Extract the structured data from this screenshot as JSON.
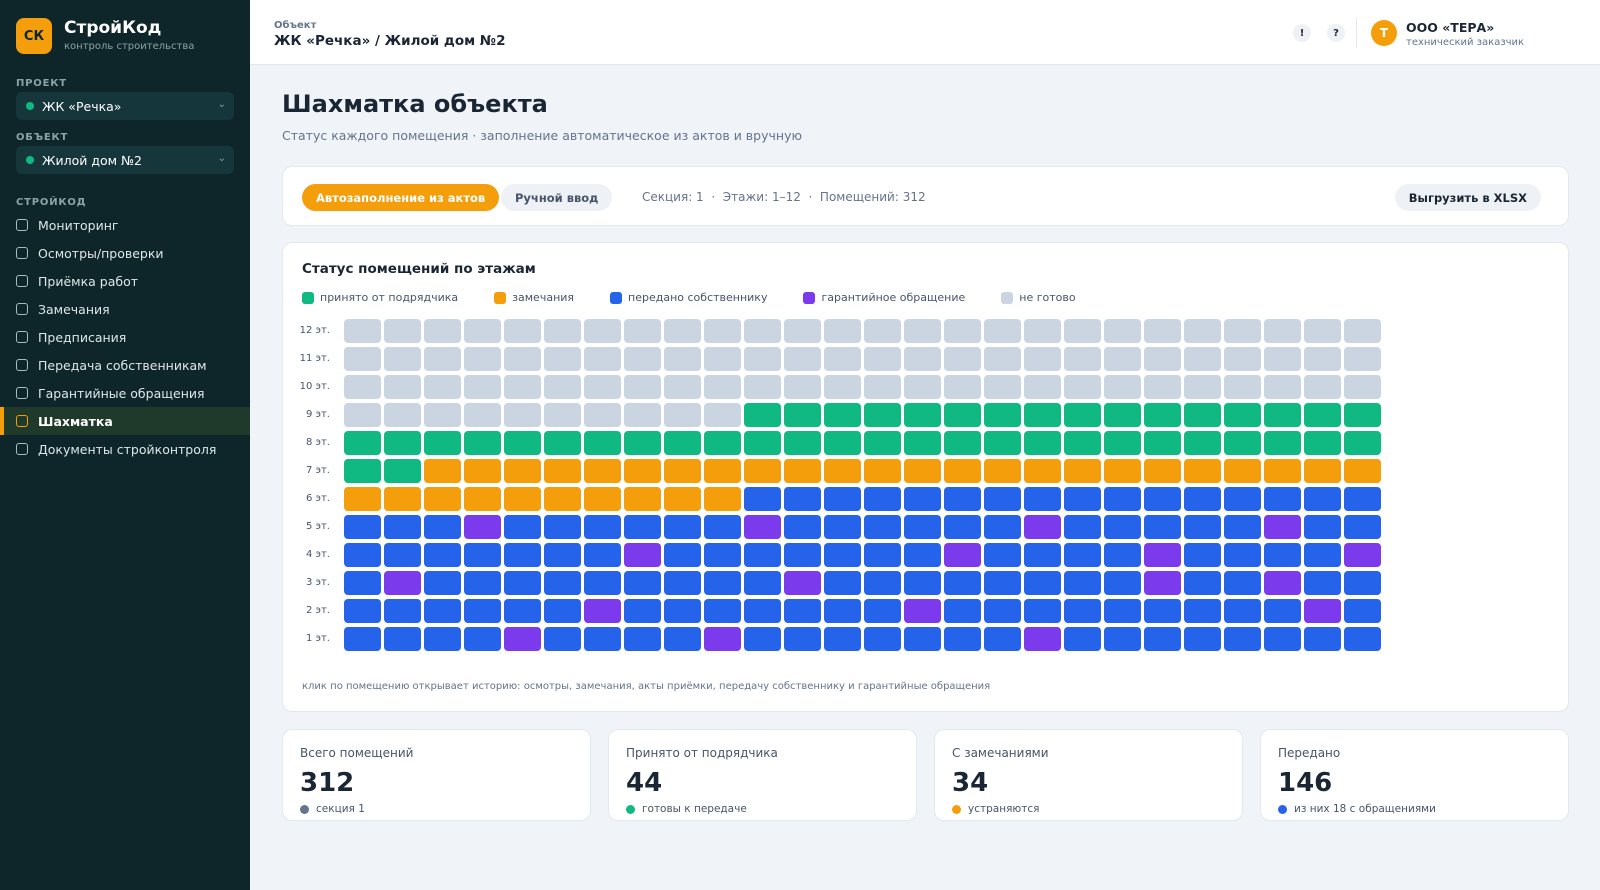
{
  "brand": {
    "logo": "СК",
    "name": "СтройКод",
    "subtitle": "контроль строительства"
  },
  "sidebar": {
    "project_label": "ПРОЕКТ",
    "project_value": "ЖК «Речка»",
    "object_label": "ОБЪЕКТ",
    "object_value": "Жилой дом №2",
    "section_label": "СТРОЙКОД",
    "items": [
      {
        "label": "Мониторинг",
        "active": false
      },
      {
        "label": "Осмотры/проверки",
        "active": false
      },
      {
        "label": "Приёмка работ",
        "active": false
      },
      {
        "label": "Замечания",
        "active": false
      },
      {
        "label": "Предписания",
        "active": false
      },
      {
        "label": "Передача собственникам",
        "active": false
      },
      {
        "label": "Гарантийные обращения",
        "active": false
      },
      {
        "label": "Шахматка",
        "active": true
      },
      {
        "label": "Документы стройконтроля",
        "active": false
      }
    ]
  },
  "header": {
    "object_label": "Объект",
    "object_title": "ЖК «Речка» / Жилой дом №2",
    "icon1": "!",
    "icon2": "?",
    "avatar": "Т",
    "user_name": "ООО «ТЕРА»",
    "user_role": "технический заказчик"
  },
  "page": {
    "title": "Шахматка объекта",
    "subtitle": "Статус каждого помещения · заполнение автоматическое из актов и вручную"
  },
  "toolbar": {
    "auto_button": "Автозаполнение из актов",
    "manual_button": "Ручной ввод",
    "info": "Секция: 1  ·  Этажи: 1–12  ·  Помещений: 312",
    "export_button": "Выгрузить в XLSX"
  },
  "grid": {
    "title": "Статус помещений по этажам",
    "legend": [
      {
        "key": "accepted",
        "label": "принято от подрядчика",
        "color": "#10b981"
      },
      {
        "key": "remarks",
        "label": "замечания",
        "color": "#f59e0b"
      },
      {
        "key": "transferred",
        "label": "передано собственнику",
        "color": "#2563eb"
      },
      {
        "key": "warranty",
        "label": "гарантийное обращение",
        "color": "#7c3aed"
      },
      {
        "key": "notready",
        "label": "не готово",
        "color": "#cbd5e1"
      }
    ],
    "floors": [
      {
        "label": "12 эт.",
        "rooms": "NNNNNNNNNNNNNNNNNNNNNNNNNN"
      },
      {
        "label": "11 эт.",
        "rooms": "NNNNNNNNNNNNNNNNNNNNNNNNNN"
      },
      {
        "label": "10 эт.",
        "rooms": "NNNNNNNNNNNNNNNNNNNNNNNNNN"
      },
      {
        "label": "9 эт.",
        "rooms": "NNNNNNNNNNGGGGGGGGGGGGGGGG"
      },
      {
        "label": "8 эт.",
        "rooms": "GGGGGGGGGGGGGGGGGGGGGGGGGG"
      },
      {
        "label": "7 эт.",
        "rooms": "GGOOOOOOOOOOOOOOOOOOOOOOOO"
      },
      {
        "label": "6 эт.",
        "rooms": "OOOOOOOOOOBBBBBBBBBBBBBBBB"
      },
      {
        "label": "5 эт.",
        "rooms": "BBBPBBBBBBPBBBBBBPBBBBBPBB"
      },
      {
        "label": "4 эт.",
        "rooms": "BBBBBBBPBBBBBBBPBBBBPBBBBP"
      },
      {
        "label": "3 эт.",
        "rooms": "BPBBBBBBBBBPBBBBBBBBPBBPBB"
      },
      {
        "label": "2 эт.",
        "rooms": "BBBBBBPBBBBBBBPBBBBBBBBBPB"
      },
      {
        "label": "1 эт.",
        "rooms": "BBBBPBBBBPBBBBBBBPBBBBBBBB"
      }
    ],
    "hint": "клик по помещению открывает историю: осмотры, замечания, акты приёмки, передачу собственнику и гарантийные обращения"
  },
  "stats": [
    {
      "label": "Всего помещений",
      "value": "312",
      "note": "секция 1",
      "color": "#64748b"
    },
    {
      "label": "Принято от подрядчика",
      "value": "44",
      "note": "готовы к передаче",
      "color": "#10b981"
    },
    {
      "label": "С замечаниями",
      "value": "34",
      "note": "устраняются",
      "color": "#f59e0b"
    },
    {
      "label": "Передано",
      "value": "146",
      "note": "из них 18 с обращениями",
      "color": "#2563eb"
    }
  ]
}
